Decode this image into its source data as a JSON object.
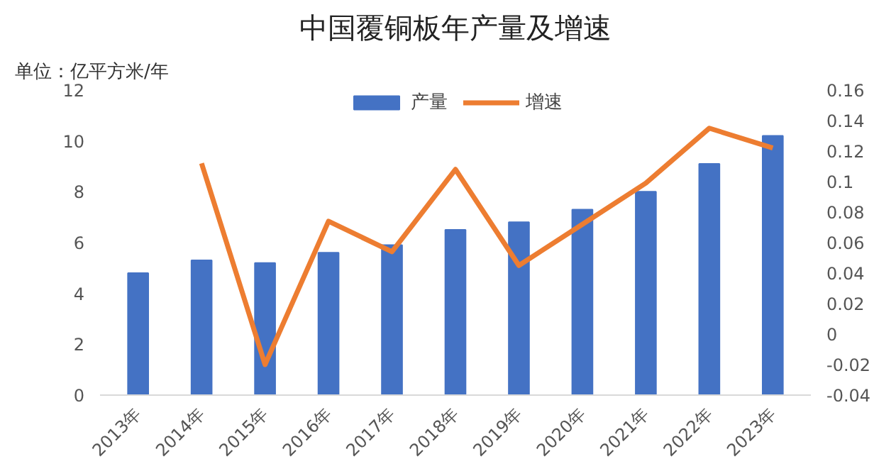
{
  "chart_data": {
    "type": "bar",
    "title": "中国覆铜板年产量及增速",
    "annotations": [
      "单位：亿平方米/年"
    ],
    "categories": [
      "2013年",
      "2014年",
      "2015年",
      "2016年",
      "2017年",
      "2018年",
      "2019年",
      "2020年",
      "2021年",
      "2022年",
      "2023年"
    ],
    "series": [
      {
        "name": "产量",
        "color": "#4472c4",
        "values": [
          4.8,
          5.3,
          5.2,
          5.6,
          5.9,
          6.5,
          6.8,
          7.3,
          8.0,
          9.1,
          10.2
        ]
      },
      {
        "name": "增速",
        "type": "line",
        "axis": "y2",
        "color": "#ed7d31",
        "values": [
          null,
          0.112,
          -0.02,
          0.074,
          0.054,
          0.108,
          0.045,
          0.072,
          0.099,
          0.135,
          0.122
        ]
      }
    ],
    "ylim": [
      0,
      12
    ],
    "yticks": [
      0,
      2,
      4,
      6,
      8,
      10,
      12
    ],
    "y2lim": [
      -0.04,
      0.16
    ],
    "y2ticks": [
      -0.04,
      -0.02,
      0,
      0.02,
      0.04,
      0.06,
      0.08,
      0.1,
      0.12,
      0.14,
      0.16
    ],
    "legend": "top",
    "grid": false,
    "marker": "none"
  }
}
